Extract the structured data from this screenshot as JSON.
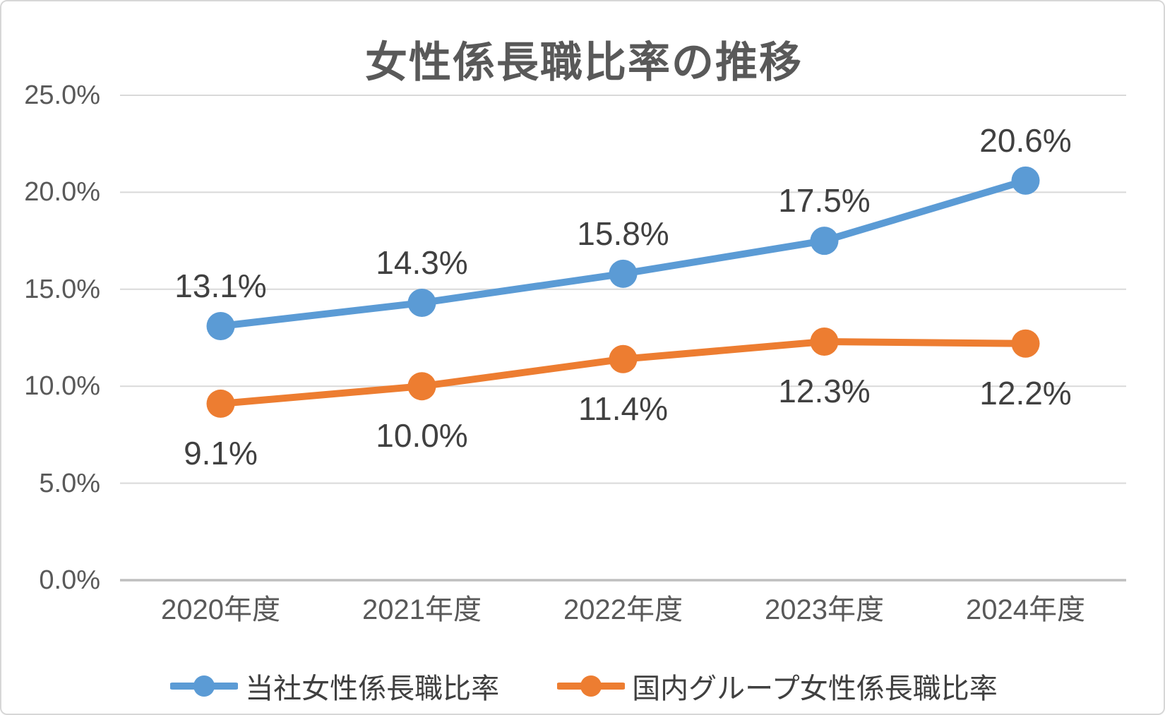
{
  "title": "女性係長職比率の推移",
  "chart_data": {
    "type": "line",
    "title": "女性係長職比率の推移",
    "categories": [
      "2020年度",
      "2021年度",
      "2022年度",
      "2023年度",
      "2024年度"
    ],
    "series": [
      {
        "name": "当社女性係長職比率",
        "color": "#5B9BD5",
        "values": [
          13.1,
          14.3,
          15.8,
          17.5,
          20.6
        ],
        "data_labels": [
          "13.1%",
          "14.3%",
          "15.8%",
          "17.5%",
          "20.6%"
        ],
        "label_position": "above"
      },
      {
        "name": "国内グループ女性係長職比率",
        "color": "#ED7D31",
        "values": [
          9.1,
          10.0,
          11.4,
          12.3,
          12.2
        ],
        "data_labels": [
          "9.1%",
          "10.0%",
          "11.4%",
          "12.3%",
          "12.2%"
        ],
        "label_position": "below"
      }
    ],
    "ylim": [
      0,
      25
    ],
    "yticks": [
      {
        "value": 0,
        "label": "0.0%"
      },
      {
        "value": 5,
        "label": "5.0%"
      },
      {
        "value": 10,
        "label": "10.0%"
      },
      {
        "value": 15,
        "label": "15.0%"
      },
      {
        "value": 20,
        "label": "20.0%"
      },
      {
        "value": 25,
        "label": "25.0%"
      }
    ],
    "grid": "horizontal",
    "legend_position": "bottom",
    "colors": {
      "gridline": "#D9D9D9",
      "axis_line": "#BFBFBF",
      "axis_text": "#595959",
      "data_label_text": "#404040",
      "title_text": "#595959",
      "background": "#FFFFFF",
      "border": "#D7D7D7"
    }
  }
}
